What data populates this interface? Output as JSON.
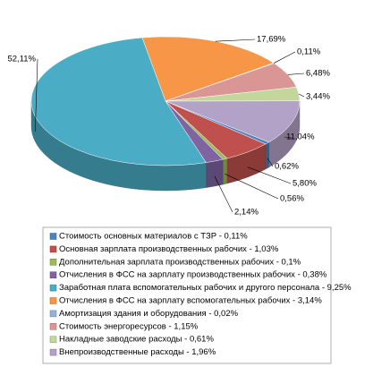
{
  "chart_data": {
    "type": "pie3d",
    "values": [
      17.69,
      0.11,
      6.48,
      3.44,
      11.04,
      0.62,
      5.8,
      0.56,
      2.14,
      52.11
    ],
    "value_labels": [
      "17,69%",
      "0,11%",
      "6,48%",
      "3,44%",
      "11,04%",
      "0,62%",
      "5,80%",
      "0,56%",
      "2,14%",
      "52,11%"
    ],
    "colors": [
      "#f79646",
      "#95b3d7",
      "#d99694",
      "#c3d69b",
      "#b3a2c7",
      "#4f81bd",
      "#c0504d",
      "#9bbb59",
      "#8064a2",
      "#4bacc6"
    ],
    "legend": {
      "items": [
        {
          "label": "Стоимость основных материалов с ТЗР - 0,11%",
          "color": "#4f81bd"
        },
        {
          "label": "Основная зарплата производственных рабочих - 1,03%",
          "color": "#c0504d"
        },
        {
          "label": "Дополнительная зарплата производственных рабочих - 0,1%",
          "color": "#9bbb59"
        },
        {
          "label": "Отчисления в ФСС на зарплату производственных рабочих - 0,38%",
          "color": "#8064a2"
        },
        {
          "label": "Заработная плата вспомогательных рабочих и другого персонала - 9,25%",
          "color": "#4bacc6"
        },
        {
          "label": "Отчисления в ФСС на зарплату вспомогательных рабочих - 3,14%",
          "color": "#f79646"
        },
        {
          "label": "Амортизация здания и оборудования - 0,02%",
          "color": "#95b3d7"
        },
        {
          "label": "Стоимость энергоресурсов - 1,15%",
          "color": "#d99694"
        },
        {
          "label": "Накладные заводские расходы - 0,61%",
          "color": "#c3d69b"
        },
        {
          "label": "Внепроизводственные расходы - 1,96%",
          "color": "#b3a2c7"
        }
      ]
    }
  }
}
